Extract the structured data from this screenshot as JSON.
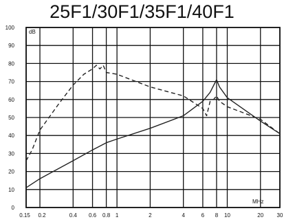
{
  "chart_data": {
    "type": "line",
    "title": "25F1/30F1/35F1/40F1",
    "x_scale": "log",
    "xlim": [
      0.15,
      30
    ],
    "ylim": [
      0,
      100
    ],
    "x_ticks": [
      0.15,
      0.2,
      0.4,
      0.6,
      0.8,
      1,
      2,
      4,
      6,
      8,
      10,
      20,
      30
    ],
    "x_tick_labels": [
      "0.15",
      "0.2",
      "0.4",
      "0.6",
      "0.8",
      "1",
      "2",
      "4",
      "6",
      "8",
      "10",
      "20",
      "30"
    ],
    "x_unit": "MHz",
    "y_ticks": [
      0,
      10,
      20,
      30,
      40,
      50,
      60,
      70,
      80,
      90,
      100
    ],
    "y_tick_labels": [
      "0",
      "10",
      "20",
      "30",
      "40",
      "50",
      "60",
      "70",
      "80",
      "90",
      "100"
    ],
    "y_unit": "dB",
    "grid": true,
    "series": [
      {
        "style": "dashed",
        "color": "#222222",
        "points": [
          [
            0.15,
            26
          ],
          [
            0.17,
            32
          ],
          [
            0.2,
            43
          ],
          [
            0.3,
            58
          ],
          [
            0.4,
            68
          ],
          [
            0.5,
            74
          ],
          [
            0.6,
            77
          ],
          [
            0.65,
            79
          ],
          [
            0.7,
            77
          ],
          [
            0.75,
            79
          ],
          [
            0.8,
            75
          ],
          [
            1,
            74
          ],
          [
            2,
            67
          ],
          [
            4,
            62
          ],
          [
            6,
            55
          ],
          [
            6.5,
            51
          ],
          [
            7,
            59
          ],
          [
            7.5,
            60
          ],
          [
            8,
            62
          ],
          [
            8.5,
            59
          ],
          [
            10,
            56
          ],
          [
            20,
            49
          ],
          [
            30,
            41
          ]
        ]
      },
      {
        "style": "solid",
        "color": "#222222",
        "points": [
          [
            0.15,
            11
          ],
          [
            0.2,
            16
          ],
          [
            0.4,
            26
          ],
          [
            0.6,
            32
          ],
          [
            0.8,
            36
          ],
          [
            1,
            38
          ],
          [
            2,
            44
          ],
          [
            4,
            51
          ],
          [
            6,
            59
          ],
          [
            7,
            64
          ],
          [
            8,
            71
          ],
          [
            8.5,
            67
          ],
          [
            10,
            61
          ],
          [
            20,
            48
          ],
          [
            30,
            41
          ]
        ]
      }
    ]
  }
}
